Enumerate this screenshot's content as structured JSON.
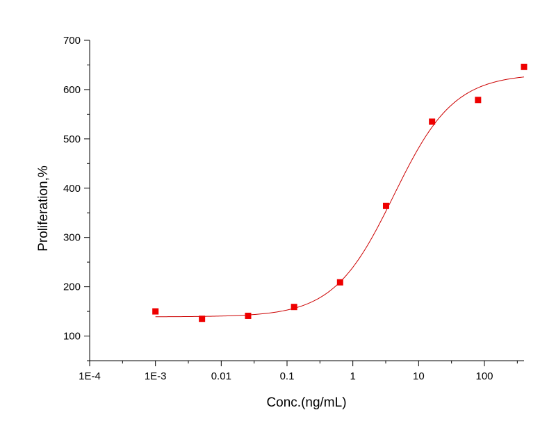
{
  "chart_data": {
    "type": "scatter",
    "xlabel": "Conc.(ng/mL)",
    "ylabel": "Proliferation,%",
    "x_scale": "log",
    "xlim": [
      0.0001,
      400
    ],
    "ylim": [
      50,
      700
    ],
    "x_ticks": [
      {
        "value": 0.0001,
        "label": "1E-4"
      },
      {
        "value": 0.001,
        "label": "1E-3"
      },
      {
        "value": 0.01,
        "label": "0.01"
      },
      {
        "value": 0.1,
        "label": "0.1"
      },
      {
        "value": 1,
        "label": "1"
      },
      {
        "value": 10,
        "label": "10"
      },
      {
        "value": 100,
        "label": "100"
      }
    ],
    "y_ticks": [
      {
        "value": 100,
        "label": "100"
      },
      {
        "value": 200,
        "label": "200"
      },
      {
        "value": 300,
        "label": "300"
      },
      {
        "value": 400,
        "label": "400"
      },
      {
        "value": 500,
        "label": "500"
      },
      {
        "value": 600,
        "label": "600"
      },
      {
        "value": 700,
        "label": "700"
      }
    ],
    "grid": false,
    "legend": "none",
    "series": [
      {
        "x": [
          0.001,
          0.0051,
          0.0256,
          0.128,
          0.64,
          3.2,
          16,
          80,
          400
        ],
        "y": [
          150,
          135,
          141,
          159,
          209,
          364,
          535,
          579,
          646
        ],
        "color": "#ee0000",
        "marker": "square"
      }
    ],
    "fit_curve": {
      "type": "4PL",
      "bottom": 139,
      "top": 632,
      "ec50": 4.2,
      "hill": 0.95,
      "color": "#cc0000"
    }
  }
}
